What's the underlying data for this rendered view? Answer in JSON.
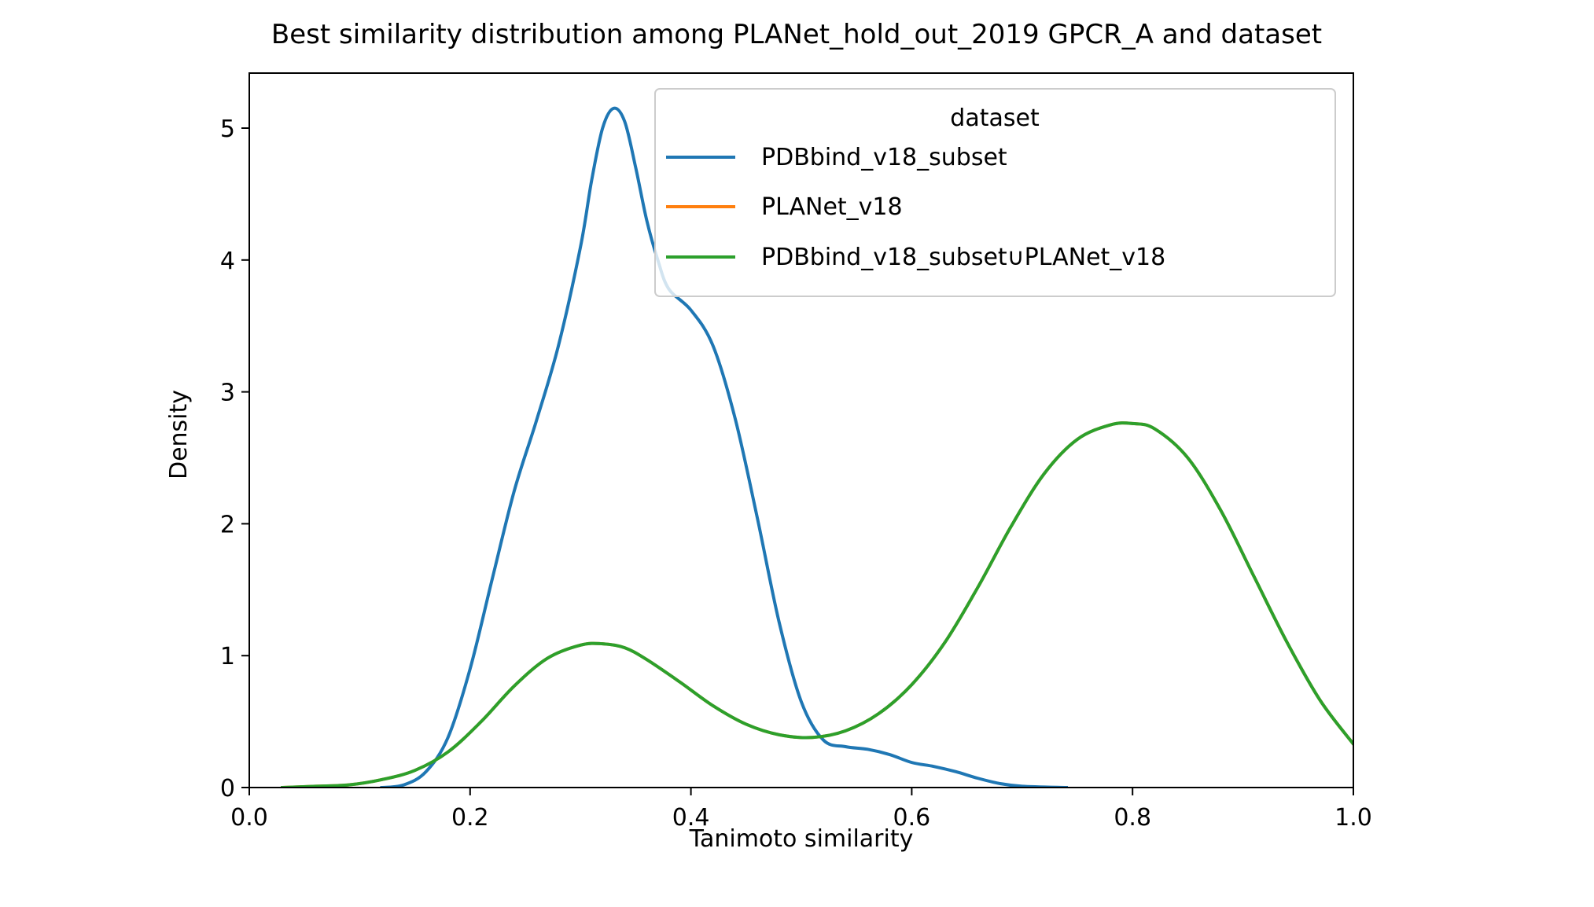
{
  "chart_data": {
    "type": "line",
    "title": "Best similarity distribution among PLANet_hold_out_2019 GPCR_A and dataset",
    "xlabel": "Tanimoto similarity",
    "ylabel": "Density",
    "xlim": [
      0.0,
      1.0
    ],
    "ylim": [
      0.0,
      5.4
    ],
    "xticks": [
      0.0,
      0.2,
      0.4,
      0.6,
      0.8,
      1.0
    ],
    "xtick_labels": [
      "0.0",
      "0.2",
      "0.4",
      "0.6",
      "0.8",
      "1.0"
    ],
    "yticks": [
      0,
      1,
      2,
      3,
      4,
      5
    ],
    "ytick_labels": [
      "0",
      "1",
      "2",
      "3",
      "4",
      "5"
    ],
    "grid": false,
    "legend": {
      "title": "dataset",
      "placement": "top-right"
    },
    "series": [
      {
        "name": "PDBbind_v18_subset",
        "color": "#1f77b4",
        "points": [
          [
            0.12,
            0.0
          ],
          [
            0.14,
            0.02
          ],
          [
            0.16,
            0.12
          ],
          [
            0.18,
            0.38
          ],
          [
            0.2,
            0.9
          ],
          [
            0.22,
            1.58
          ],
          [
            0.24,
            2.25
          ],
          [
            0.26,
            2.78
          ],
          [
            0.28,
            3.35
          ],
          [
            0.3,
            4.1
          ],
          [
            0.31,
            4.6
          ],
          [
            0.32,
            5.0
          ],
          [
            0.33,
            5.15
          ],
          [
            0.34,
            5.05
          ],
          [
            0.35,
            4.7
          ],
          [
            0.36,
            4.3
          ],
          [
            0.37,
            4.0
          ],
          [
            0.38,
            3.78
          ],
          [
            0.4,
            3.62
          ],
          [
            0.42,
            3.35
          ],
          [
            0.44,
            2.8
          ],
          [
            0.46,
            2.05
          ],
          [
            0.48,
            1.25
          ],
          [
            0.5,
            0.65
          ],
          [
            0.52,
            0.36
          ],
          [
            0.54,
            0.31
          ],
          [
            0.56,
            0.29
          ],
          [
            0.58,
            0.25
          ],
          [
            0.6,
            0.19
          ],
          [
            0.62,
            0.16
          ],
          [
            0.64,
            0.12
          ],
          [
            0.66,
            0.07
          ],
          [
            0.68,
            0.03
          ],
          [
            0.7,
            0.01
          ],
          [
            0.74,
            0.0
          ]
        ]
      },
      {
        "name": "PLANet_v18",
        "color": "#ff7f0e",
        "points": [
          [
            0.03,
            0.0
          ],
          [
            0.06,
            0.01
          ],
          [
            0.09,
            0.02
          ],
          [
            0.12,
            0.06
          ],
          [
            0.15,
            0.13
          ],
          [
            0.18,
            0.27
          ],
          [
            0.21,
            0.5
          ],
          [
            0.24,
            0.77
          ],
          [
            0.27,
            0.98
          ],
          [
            0.3,
            1.08
          ],
          [
            0.32,
            1.09
          ],
          [
            0.34,
            1.06
          ],
          [
            0.36,
            0.97
          ],
          [
            0.39,
            0.8
          ],
          [
            0.42,
            0.62
          ],
          [
            0.45,
            0.48
          ],
          [
            0.48,
            0.4
          ],
          [
            0.51,
            0.38
          ],
          [
            0.54,
            0.43
          ],
          [
            0.57,
            0.56
          ],
          [
            0.6,
            0.78
          ],
          [
            0.63,
            1.1
          ],
          [
            0.66,
            1.52
          ],
          [
            0.69,
            1.98
          ],
          [
            0.72,
            2.38
          ],
          [
            0.75,
            2.64
          ],
          [
            0.78,
            2.75
          ],
          [
            0.8,
            2.76
          ],
          [
            0.82,
            2.72
          ],
          [
            0.85,
            2.5
          ],
          [
            0.88,
            2.1
          ],
          [
            0.91,
            1.6
          ],
          [
            0.94,
            1.1
          ],
          [
            0.97,
            0.66
          ],
          [
            1.0,
            0.33
          ]
        ]
      },
      {
        "name": "PDBbind_v18_subset∪PLANet_v18",
        "color": "#2ca02c",
        "points": [
          [
            0.03,
            0.0
          ],
          [
            0.06,
            0.01
          ],
          [
            0.09,
            0.02
          ],
          [
            0.12,
            0.06
          ],
          [
            0.15,
            0.13
          ],
          [
            0.18,
            0.27
          ],
          [
            0.21,
            0.5
          ],
          [
            0.24,
            0.77
          ],
          [
            0.27,
            0.98
          ],
          [
            0.3,
            1.08
          ],
          [
            0.32,
            1.09
          ],
          [
            0.34,
            1.06
          ],
          [
            0.36,
            0.97
          ],
          [
            0.39,
            0.8
          ],
          [
            0.42,
            0.62
          ],
          [
            0.45,
            0.48
          ],
          [
            0.48,
            0.4
          ],
          [
            0.51,
            0.38
          ],
          [
            0.54,
            0.43
          ],
          [
            0.57,
            0.56
          ],
          [
            0.6,
            0.78
          ],
          [
            0.63,
            1.1
          ],
          [
            0.66,
            1.52
          ],
          [
            0.69,
            1.98
          ],
          [
            0.72,
            2.38
          ],
          [
            0.75,
            2.64
          ],
          [
            0.78,
            2.75
          ],
          [
            0.8,
            2.76
          ],
          [
            0.82,
            2.72
          ],
          [
            0.85,
            2.5
          ],
          [
            0.88,
            2.1
          ],
          [
            0.91,
            1.6
          ],
          [
            0.94,
            1.1
          ],
          [
            0.97,
            0.66
          ],
          [
            1.0,
            0.33
          ]
        ]
      }
    ]
  }
}
